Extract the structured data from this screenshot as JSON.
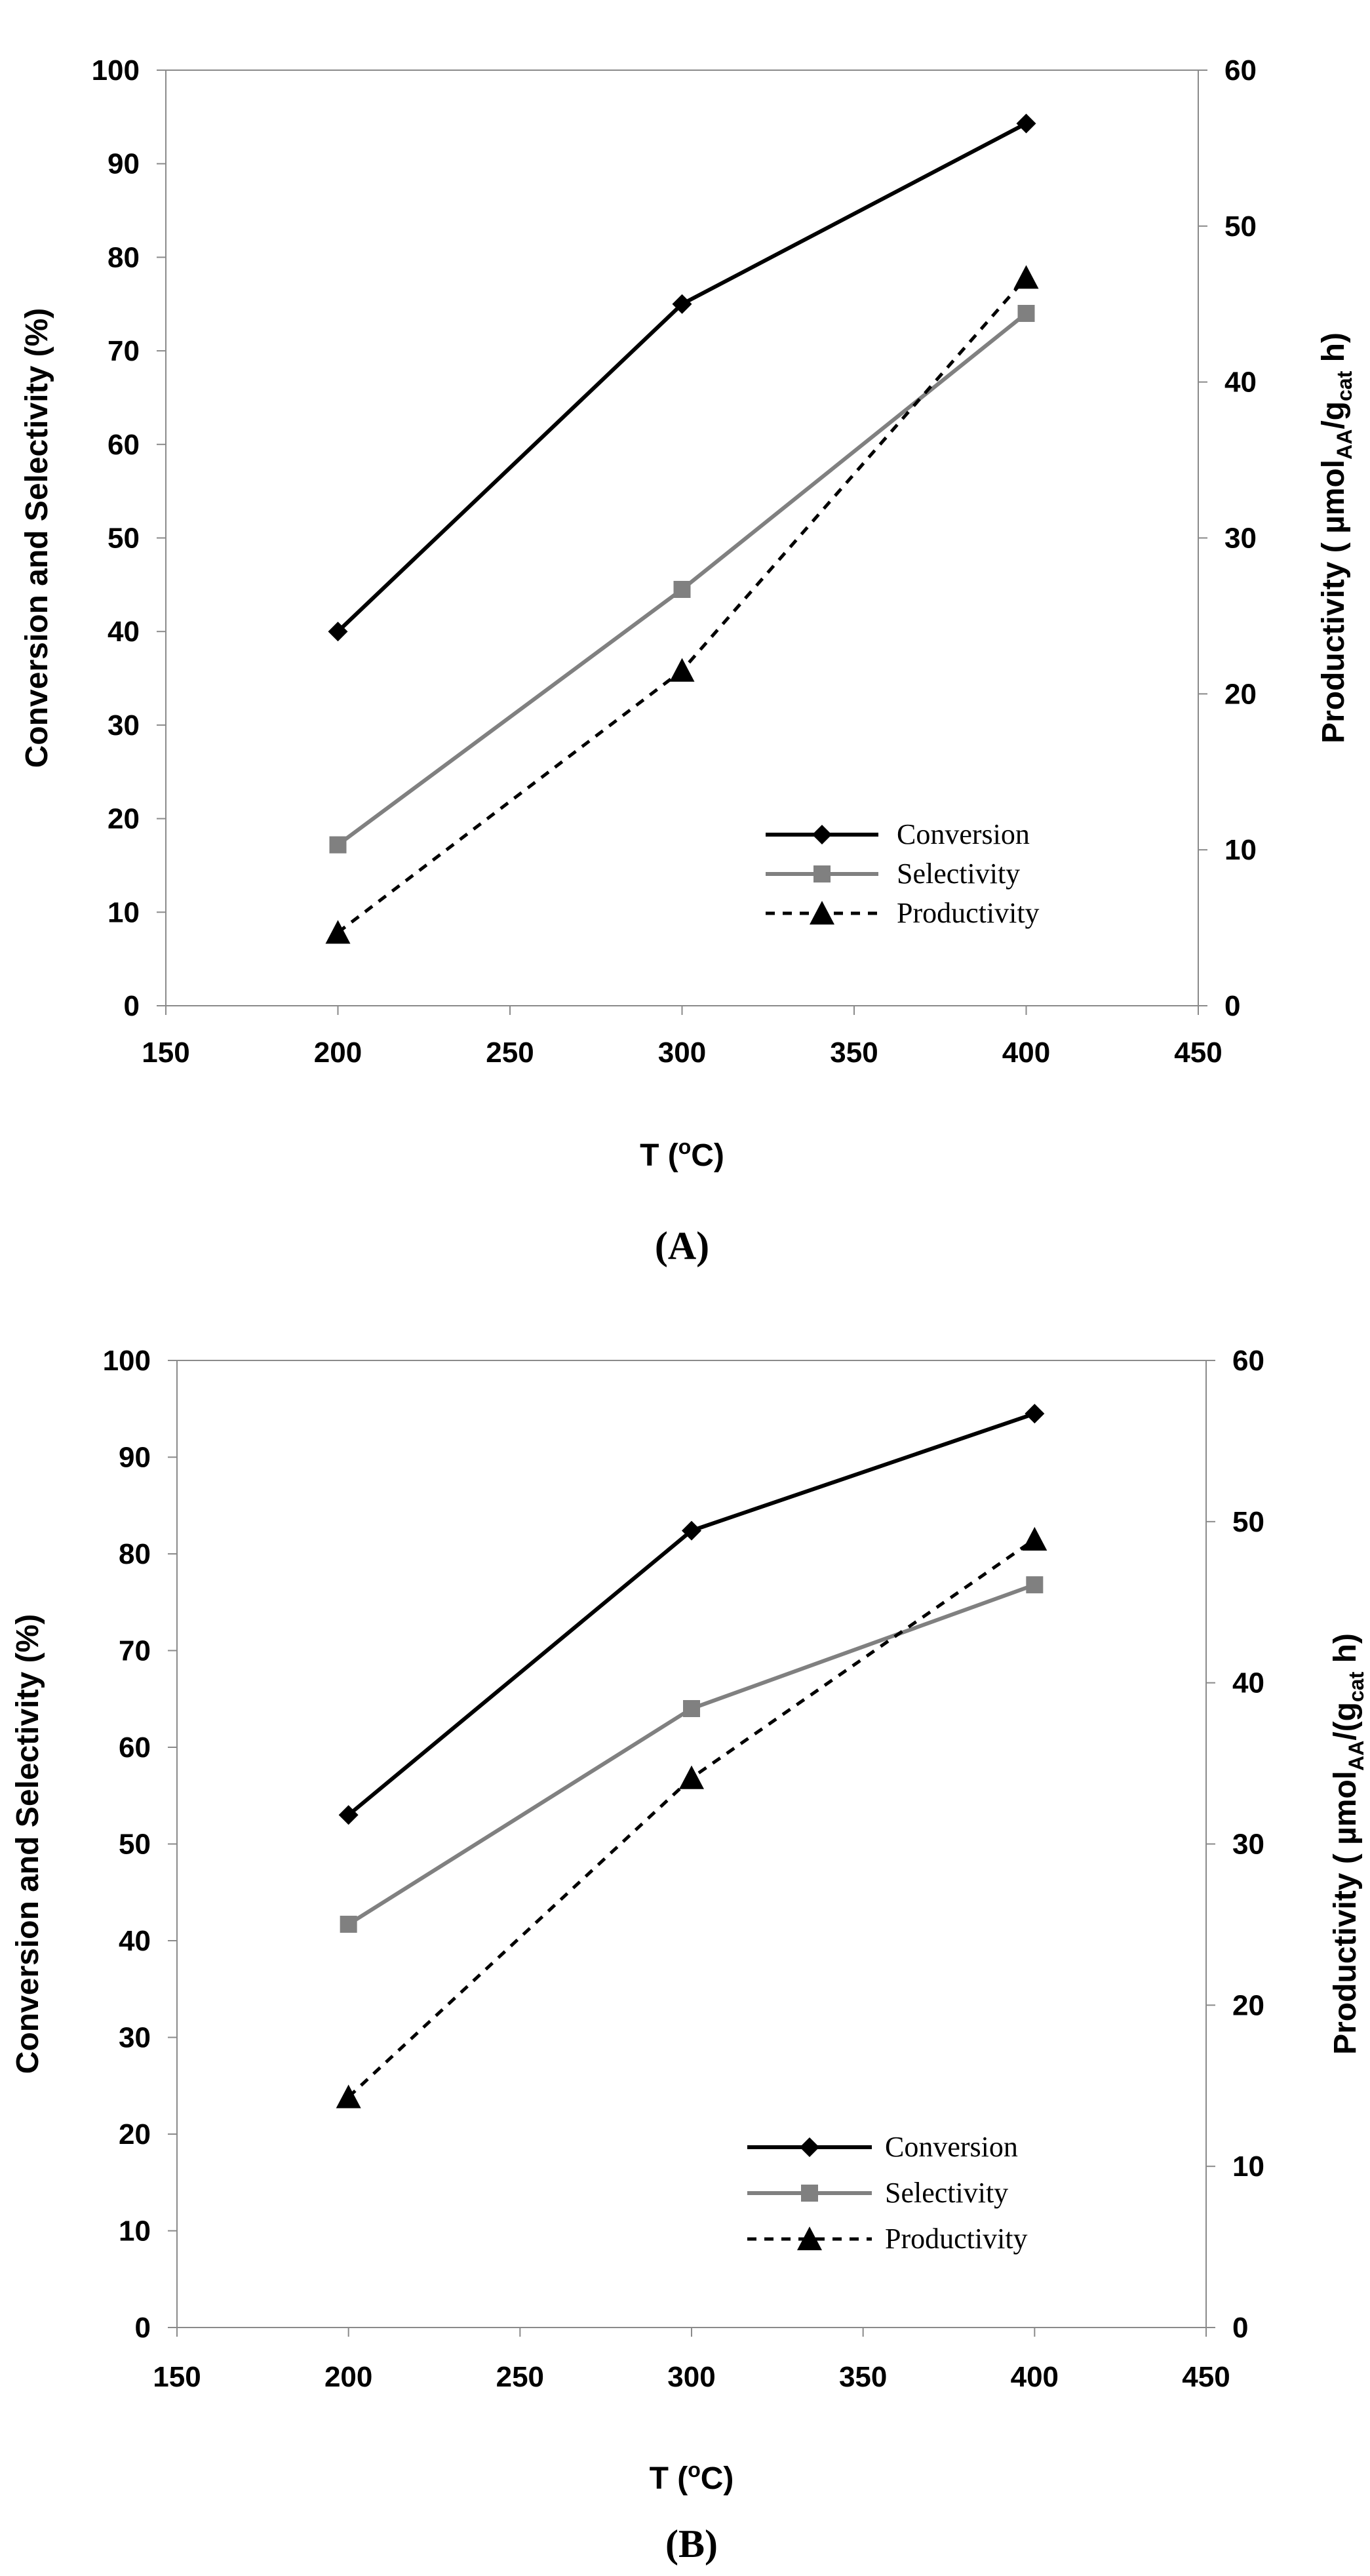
{
  "chart_data": [
    {
      "type": "line",
      "panel_label": "(A)",
      "x": [
        200,
        300,
        400
      ],
      "xlabel_main": "T (",
      "xlabel_sup": "o",
      "xlabel_end": "C)",
      "xlim": [
        150,
        450
      ],
      "xticks": [
        150,
        200,
        250,
        300,
        350,
        400,
        450
      ],
      "ylabel": "Conversion and Selectivity (%)",
      "ylim": [
        0,
        100
      ],
      "yticks": [
        0,
        10,
        20,
        30,
        40,
        50,
        60,
        70,
        80,
        90,
        100
      ],
      "y2label_main": "Productivity ( µmol",
      "y2label_sub1": "AA",
      "y2label_mid": "/g",
      "y2label_sub2": "cat",
      "y2label_end": " h)",
      "y2lim": [
        0,
        60
      ],
      "y2ticks": [
        0,
        10,
        20,
        30,
        40,
        50,
        60
      ],
      "series": [
        {
          "name": "Conversion",
          "axis": "left",
          "values": [
            40,
            75,
            94.3
          ],
          "color": "#000000",
          "marker": "diamond",
          "dash": "solid"
        },
        {
          "name": "Selectivity",
          "axis": "left",
          "values": [
            17.2,
            44.5,
            74
          ],
          "color": "#808080",
          "marker": "square",
          "dash": "solid"
        },
        {
          "name": "Productivity",
          "axis": "right",
          "values": [
            4.7,
            21.5,
            46.7
          ],
          "color": "#000000",
          "marker": "triangle",
          "dash": "dashed"
        }
      ],
      "legend_position": "bottom-right"
    },
    {
      "type": "line",
      "panel_label": "(B)",
      "x": [
        200,
        300,
        400
      ],
      "xlabel_main": "T (",
      "xlabel_sup": "o",
      "xlabel_end": "C)",
      "xlim": [
        150,
        450
      ],
      "xticks": [
        150,
        200,
        250,
        300,
        350,
        400,
        450
      ],
      "ylabel": "Conversion and Selectivity (%)",
      "ylim": [
        0,
        100
      ],
      "yticks": [
        0,
        10,
        20,
        30,
        40,
        50,
        60,
        70,
        80,
        90,
        100
      ],
      "y2label_main": "Productivity ( µmol",
      "y2label_sub1": "AA",
      "y2label_mid": "/(g",
      "y2label_sub2": "cat",
      "y2label_end": " h)",
      "y2lim": [
        0,
        60
      ],
      "y2ticks": [
        0,
        10,
        20,
        30,
        40,
        50,
        60
      ],
      "series": [
        {
          "name": "Conversion",
          "axis": "left",
          "values": [
            53,
            82.4,
            94.5
          ],
          "color": "#000000",
          "marker": "diamond",
          "dash": "solid"
        },
        {
          "name": "Selectivity",
          "axis": "left",
          "values": [
            41.7,
            64,
            76.8
          ],
          "color": "#808080",
          "marker": "square",
          "dash": "solid"
        },
        {
          "name": "Productivity",
          "axis": "right",
          "values": [
            14.3,
            34.1,
            48.9
          ],
          "color": "#000000",
          "marker": "triangle",
          "dash": "dashed"
        }
      ],
      "legend_position": "bottom-right"
    }
  ]
}
